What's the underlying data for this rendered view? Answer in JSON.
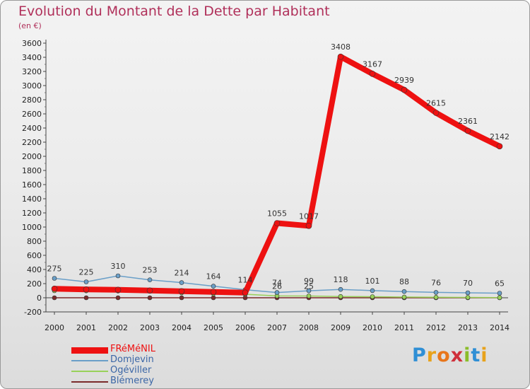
{
  "title": "Evolution du Montant de la Dette par Habitant",
  "unit_label": "(en €)",
  "logo": {
    "text": "Proxiti",
    "letters": [
      {
        "ch": "P",
        "color": "#2f8fd5"
      },
      {
        "ch": "r",
        "color": "#e8a21b"
      },
      {
        "ch": "o",
        "color": "#e8761b"
      },
      {
        "ch": "x",
        "color": "#cf2f3a"
      },
      {
        "ch": "i",
        "color": "#8bbd2a"
      },
      {
        "ch": "t",
        "color": "#2f8fd5"
      },
      {
        "ch": "i",
        "color": "#e8a21b"
      }
    ]
  },
  "chart_data": {
    "type": "line",
    "title": "Evolution du Montant de la Dette par Habitant",
    "subtitle": "(en €)",
    "xlabel": "",
    "ylabel": "",
    "categories": [
      "2000",
      "2001",
      "2002",
      "2003",
      "2004",
      "2005",
      "2006",
      "2007",
      "2008",
      "2009",
      "2010",
      "2011",
      "2012",
      "2013",
      "2014"
    ],
    "ylim": [
      -200,
      3600
    ],
    "ytick_step": 200,
    "grid": false,
    "legend_position": "bottom-left",
    "series": [
      {
        "name": "FRéMéNIL",
        "color": "#ee1111",
        "values": [
          128,
          118,
          112,
          102,
          92,
          82,
          72,
          1055,
          1017,
          3408,
          3167,
          2939,
          2615,
          2361,
          2142
        ],
        "labels": [
          "",
          "",
          "",
          "",
          "",
          "",
          "",
          "1055",
          "1017",
          "3408",
          "3167",
          "2939",
          "2615",
          "2361",
          "2142"
        ]
      },
      {
        "name": "Domjevin",
        "color": "#6a9fc8",
        "values": [
          275,
          225,
          310,
          253,
          214,
          164,
          114,
          74,
          99,
          118,
          101,
          88,
          76,
          70,
          65
        ],
        "labels": [
          "275",
          "225",
          "310",
          "253",
          "214",
          "164",
          "114",
          "74",
          "99",
          "118",
          "101",
          "88",
          "76",
          "70",
          "65"
        ]
      },
      {
        "name": "Ogéviller",
        "color": "#99d15a",
        "values": [
          100,
          98,
          96,
          92,
          70,
          56,
          50,
          26,
          25,
          18,
          15,
          10,
          7,
          5,
          3
        ],
        "labels": [
          "",
          "",
          "",
          "",
          "",
          "",
          "",
          "26",
          "25",
          "",
          "",
          "",
          "",
          "",
          ""
        ]
      },
      {
        "name": "Blémerey",
        "color": "#7a2b2b",
        "values": [
          0,
          0,
          0,
          0,
          0,
          0,
          0,
          0,
          0,
          0,
          0,
          0,
          0,
          0,
          0
        ],
        "labels": [
          "",
          "",
          "",
          "",
          "",
          "",
          "",
          "",
          "",
          "",
          "",
          "",
          "",
          "",
          ""
        ]
      }
    ]
  }
}
